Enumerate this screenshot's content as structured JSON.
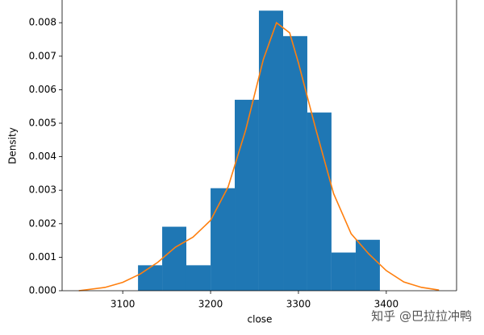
{
  "chart_data": {
    "type": "histogram",
    "xlabel": "close",
    "ylabel": "Density",
    "bins": [
      3117.4,
      3144.9,
      3172.4,
      3200.0,
      3227.5,
      3255.0,
      3282.6,
      3310.1,
      3337.6,
      3365.2,
      3392.7
    ],
    "values": [
      0.00076,
      0.00191,
      0.00076,
      0.00306,
      0.0057,
      0.00836,
      0.0076,
      0.00532,
      0.00114,
      0.00152
    ],
    "color": "#1f77b4",
    "kde": {
      "type": "line",
      "color": "#ff7f0e",
      "x": [
        3050,
        3080,
        3100,
        3120,
        3140,
        3160,
        3180,
        3200,
        3220,
        3240,
        3260,
        3275,
        3290,
        3300,
        3320,
        3340,
        3360,
        3380,
        3400,
        3420,
        3440,
        3460
      ],
      "values": [
        0.0,
        0.0001,
        0.00025,
        0.0005,
        0.00085,
        0.0013,
        0.0016,
        0.0021,
        0.0031,
        0.0048,
        0.0069,
        0.008,
        0.0077,
        0.0068,
        0.0048,
        0.0029,
        0.0017,
        0.0011,
        0.0006,
        0.00026,
        0.0001,
        2e-05
      ]
    },
    "xlim": [
      3031,
      3480
    ],
    "ylim": [
      0,
      0.00875
    ],
    "xticks": [
      3100,
      3200,
      3300,
      3400
    ],
    "yticks": [
      {
        "value": 0,
        "label": "0.000"
      },
      {
        "value": 0.001,
        "label": "0.001"
      },
      {
        "value": 0.002,
        "label": "0.002"
      },
      {
        "value": 0.003,
        "label": "0.003"
      },
      {
        "value": 0.004,
        "label": "0.004"
      },
      {
        "value": 0.005,
        "label": "0.005"
      },
      {
        "value": 0.006,
        "label": "0.006"
      },
      {
        "value": 0.007,
        "label": "0.007"
      },
      {
        "value": 0.008,
        "label": "0.008"
      }
    ],
    "watermark": "知乎 @巴拉拉冲鸭"
  }
}
